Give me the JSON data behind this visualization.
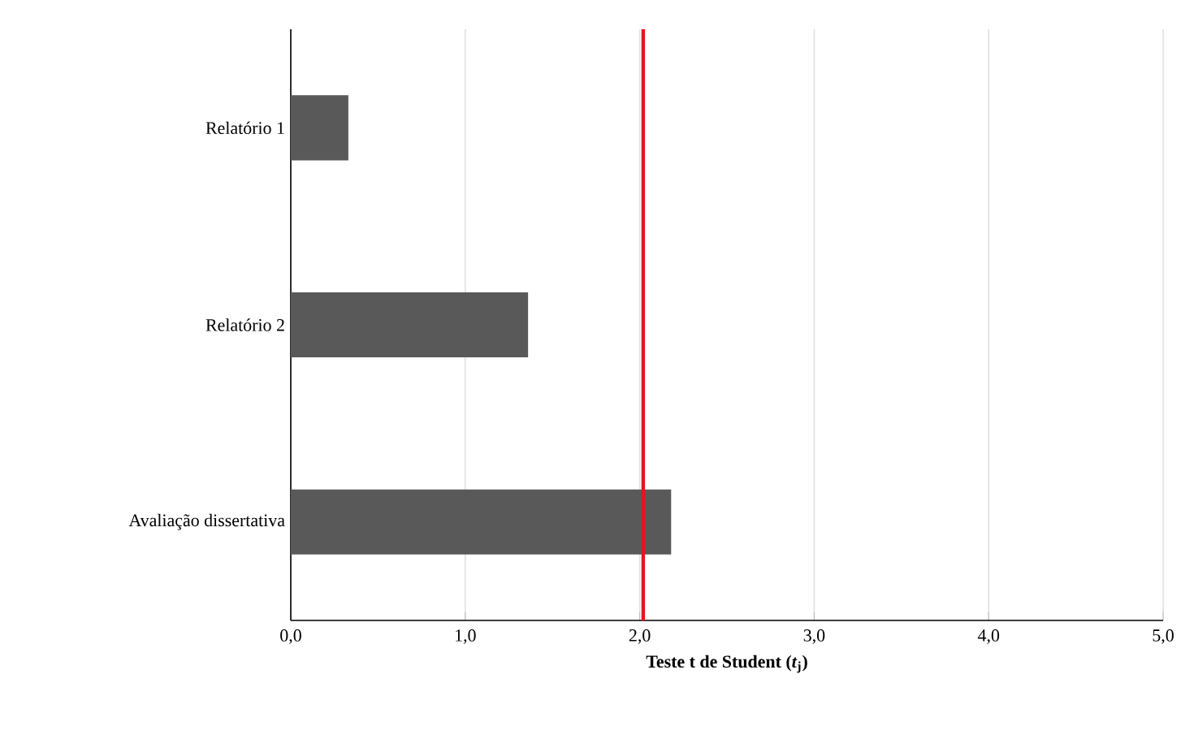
{
  "chart_data": {
    "type": "bar",
    "orientation": "horizontal",
    "categories": [
      "Relatório 1",
      "Relatório 2",
      "Avaliação dissertativa"
    ],
    "values": [
      0.33,
      1.36,
      2.18
    ],
    "color": "#595959",
    "xlabel": "Teste t de Student (*t*$_{j}$)",
    "xlim": [
      0,
      5
    ],
    "xticks": [
      {
        "value": 0,
        "label": "0,0"
      },
      {
        "value": 1,
        "label": "1,0"
      },
      {
        "value": 2,
        "label": "2,0"
      },
      {
        "value": 3,
        "label": "3,0"
      },
      {
        "value": 4,
        "label": "4,0"
      },
      {
        "value": 5,
        "label": "5,0"
      }
    ],
    "grid": "x",
    "ref_lines": [
      {
        "axis": "x",
        "value": 2.02,
        "color": "#e8141e"
      }
    ]
  }
}
